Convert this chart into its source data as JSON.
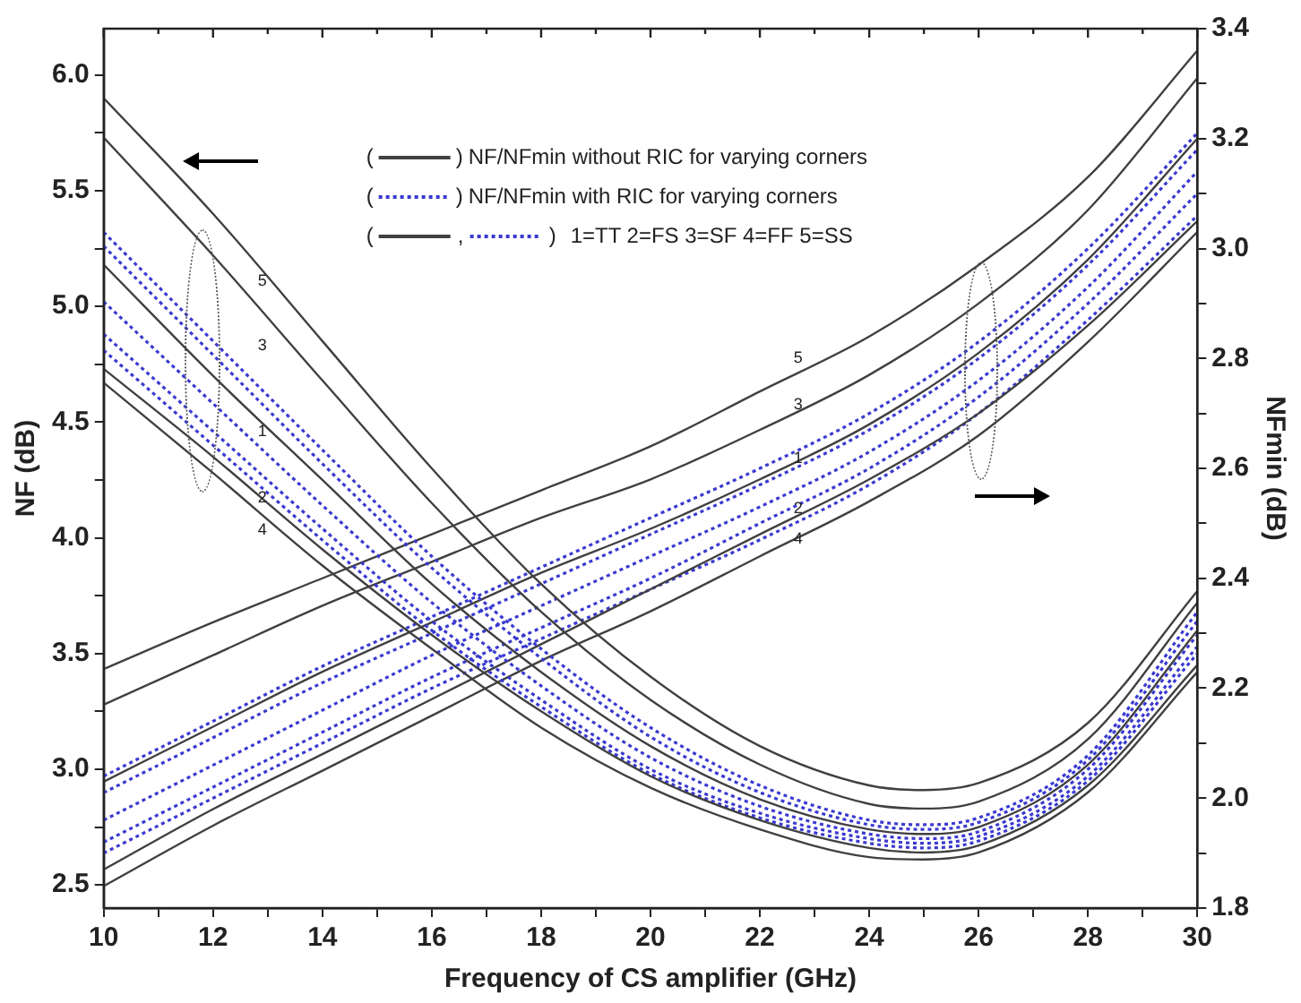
{
  "chart_data": {
    "type": "line",
    "xlabel": "Frequency of CS amplifier (GHz)",
    "ylabel": "NF (dB)",
    "y2label": "NFmin (dB)",
    "xlim": [
      10,
      30
    ],
    "xticks": [
      10,
      {
        "value": 11,
        "label": null
      },
      12,
      {
        "value": 13,
        "label": null
      },
      14,
      {
        "value": 15,
        "label": null
      },
      16,
      {
        "value": 17,
        "label": null
      },
      18,
      {
        "value": 19,
        "label": null
      },
      20,
      {
        "value": 21,
        "label": null
      },
      22,
      {
        "value": 23,
        "label": null
      },
      24,
      {
        "value": 25,
        "label": null
      },
      26,
      {
        "value": 27,
        "label": null
      },
      28,
      {
        "value": 29,
        "label": null
      },
      30
    ],
    "ylim": [
      2.4,
      6.2
    ],
    "yticks": [
      {
        "value": 2.5,
        "label": "2.5"
      },
      {
        "value": 2.75,
        "label": null
      },
      {
        "value": 3,
        "label": "3.0"
      },
      {
        "value": 3.25,
        "label": null
      },
      {
        "value": 3.5,
        "label": "3.5"
      },
      {
        "value": 3.75,
        "label": null
      },
      {
        "value": 4,
        "label": "4.0"
      },
      {
        "value": 4.25,
        "label": null
      },
      {
        "value": 4.5,
        "label": "4.5"
      },
      {
        "value": 4.75,
        "label": null
      },
      {
        "value": 5,
        "label": "5.0"
      },
      {
        "value": 5.25,
        "label": null
      },
      {
        "value": 5.5,
        "label": "5.5"
      },
      {
        "value": 5.75,
        "label": null
      },
      {
        "value": 6,
        "label": "6.0"
      }
    ],
    "y2lim": [
      1.8,
      3.4
    ],
    "y2ticks": [
      {
        "value": 1.8,
        "label": "1.8"
      },
      {
        "value": 1.9,
        "label": null
      },
      {
        "value": 2,
        "label": "2.0"
      },
      {
        "value": 2.1,
        "label": null
      },
      {
        "value": 2.2,
        "label": "2.2"
      },
      {
        "value": 2.3,
        "label": null
      },
      {
        "value": 2.4,
        "label": "2.4"
      },
      {
        "value": 2.5,
        "label": null
      },
      {
        "value": 2.6,
        "label": "2.6"
      },
      {
        "value": 2.7,
        "label": null
      },
      {
        "value": 2.8,
        "label": "2.8"
      },
      {
        "value": 2.9,
        "label": null
      },
      {
        "value": 3,
        "label": "3.0"
      },
      {
        "value": 3.1,
        "label": null
      },
      {
        "value": 3.2,
        "label": "3.2"
      },
      {
        "value": 3.3,
        "label": null
      },
      {
        "value": 3.4,
        "label": "3.4"
      }
    ],
    "grid": false,
    "legend": "top",
    "marker": "none",
    "series": [
      {
        "name": "NF/NFmin without RIC for varying corners",
        "color": "#404040",
        "line_style": "solid",
        "x": [
          10,
          12,
          14,
          16,
          18,
          20,
          22,
          24,
          25,
          26,
          28,
          30
        ],
        "values": [
          5.9,
          5.4,
          4.85,
          4.3,
          3.8,
          3.4,
          3.1,
          2.93,
          2.91,
          2.94,
          3.2,
          3.77
        ]
      },
      {
        "color": "#404040",
        "line_style": "solid",
        "x": [
          10,
          12,
          14,
          16,
          18,
          20,
          22,
          24,
          25,
          26,
          28,
          30
        ],
        "values": [
          5.73,
          5.22,
          4.68,
          4.15,
          3.68,
          3.3,
          3.02,
          2.85,
          2.83,
          2.86,
          3.13,
          3.72
        ]
      },
      {
        "color": "#404040",
        "line_style": "solid",
        "x": [
          10,
          12,
          14,
          16,
          18,
          20,
          22,
          24,
          25,
          26,
          28,
          30
        ],
        "values": [
          5.18,
          4.7,
          4.25,
          3.8,
          3.42,
          3.1,
          2.87,
          2.74,
          2.72,
          2.75,
          3.02,
          3.6
        ]
      },
      {
        "color": "#404040",
        "line_style": "solid",
        "x": [
          10,
          12,
          14,
          16,
          18,
          20,
          22,
          24,
          25,
          26,
          28,
          30
        ],
        "values": [
          4.73,
          4.35,
          3.95,
          3.58,
          3.25,
          2.97,
          2.78,
          2.66,
          2.64,
          2.67,
          2.93,
          3.45
        ]
      },
      {
        "color": "#404040",
        "line_style": "solid",
        "x": [
          10,
          12,
          14,
          16,
          18,
          20,
          22,
          24,
          25,
          26,
          28,
          30
        ],
        "values": [
          4.67,
          4.28,
          3.88,
          3.52,
          3.18,
          2.92,
          2.74,
          2.62,
          2.61,
          2.64,
          2.9,
          3.42
        ]
      },
      {
        "name": "NF/NFmin with RIC for varying corners",
        "color": "#3a3ad0",
        "line_style": "dotted",
        "x": [
          10,
          12,
          14,
          16,
          18,
          20,
          22,
          24,
          25,
          26,
          28,
          30
        ],
        "values": [
          5.32,
          4.85,
          4.38,
          3.92,
          3.52,
          3.18,
          2.93,
          2.78,
          2.76,
          2.79,
          3.06,
          3.68
        ]
      },
      {
        "color": "#3a3ad0",
        "line_style": "dotted",
        "x": [
          10,
          12,
          14,
          16,
          18,
          20,
          22,
          24,
          25,
          26,
          28,
          30
        ],
        "values": [
          5.26,
          4.79,
          4.32,
          3.87,
          3.48,
          3.14,
          2.9,
          2.76,
          2.74,
          2.77,
          3.04,
          3.64
        ]
      },
      {
        "color": "#3a3ad0",
        "line_style": "dotted",
        "x": [
          10,
          12,
          14,
          16,
          18,
          20,
          22,
          24,
          25,
          26,
          28,
          30
        ],
        "values": [
          5.02,
          4.58,
          4.14,
          3.72,
          3.36,
          3.05,
          2.84,
          2.72,
          2.7,
          2.73,
          3.0,
          3.58
        ]
      },
      {
        "color": "#3a3ad0",
        "line_style": "dotted",
        "x": [
          10,
          12,
          14,
          16,
          18,
          20,
          22,
          24,
          25,
          26,
          28,
          30
        ],
        "values": [
          4.88,
          4.46,
          4.04,
          3.64,
          3.3,
          3.0,
          2.81,
          2.7,
          2.68,
          2.71,
          2.97,
          3.53
        ]
      },
      {
        "color": "#3a3ad0",
        "line_style": "dotted",
        "x": [
          10,
          12,
          14,
          16,
          18,
          20,
          22,
          24,
          25,
          26,
          28,
          30
        ],
        "values": [
          4.81,
          4.4,
          3.99,
          3.6,
          3.27,
          2.98,
          2.79,
          2.68,
          2.66,
          2.69,
          2.95,
          3.5
        ]
      },
      {
        "color": "#404040",
        "line_style": "solid",
        "axis": "y2",
        "x": [
          10,
          12,
          14,
          16,
          18,
          20,
          22,
          24,
          26,
          28,
          30
        ],
        "values": [
          2.235,
          2.32,
          2.4,
          2.48,
          2.56,
          2.64,
          2.74,
          2.84,
          2.97,
          3.13,
          3.36
        ]
      },
      {
        "color": "#404040",
        "line_style": "solid",
        "axis": "y2",
        "x": [
          10,
          12,
          14,
          16,
          18,
          20,
          22,
          24,
          26,
          28,
          30
        ],
        "values": [
          2.17,
          2.26,
          2.35,
          2.43,
          2.51,
          2.58,
          2.67,
          2.77,
          2.9,
          3.07,
          3.31
        ]
      },
      {
        "color": "#404040",
        "line_style": "solid",
        "axis": "y2",
        "x": [
          10,
          12,
          14,
          16,
          18,
          20,
          22,
          24,
          26,
          28,
          30
        ],
        "values": [
          2.03,
          2.13,
          2.23,
          2.32,
          2.41,
          2.49,
          2.58,
          2.68,
          2.81,
          2.98,
          3.2
        ]
      },
      {
        "color": "#404040",
        "line_style": "solid",
        "axis": "y2",
        "x": [
          10,
          12,
          14,
          16,
          18,
          20,
          22,
          24,
          26,
          28,
          30
        ],
        "values": [
          1.87,
          1.98,
          2.08,
          2.18,
          2.28,
          2.38,
          2.48,
          2.58,
          2.7,
          2.86,
          3.05
        ]
      },
      {
        "color": "#404040",
        "line_style": "solid",
        "axis": "y2",
        "x": [
          10,
          12,
          14,
          16,
          18,
          20,
          22,
          24,
          26,
          28,
          30
        ],
        "values": [
          1.84,
          1.95,
          2.05,
          2.15,
          2.25,
          2.34,
          2.44,
          2.54,
          2.66,
          2.83,
          3.03
        ]
      },
      {
        "color": "#3a3ad0",
        "line_style": "dotted",
        "axis": "y2",
        "x": [
          10,
          12,
          14,
          16,
          18,
          20,
          22,
          24,
          26,
          28,
          30
        ],
        "values": [
          2.04,
          2.14,
          2.24,
          2.33,
          2.42,
          2.51,
          2.6,
          2.7,
          2.83,
          3.0,
          3.21
        ]
      },
      {
        "color": "#3a3ad0",
        "line_style": "dotted",
        "axis": "y2",
        "x": [
          10,
          12,
          14,
          16,
          18,
          20,
          22,
          24,
          26,
          28,
          30
        ],
        "values": [
          2.01,
          2.11,
          2.21,
          2.3,
          2.39,
          2.48,
          2.57,
          2.67,
          2.8,
          2.97,
          3.18
        ]
      },
      {
        "color": "#3a3ad0",
        "line_style": "dotted",
        "axis": "y2",
        "x": [
          10,
          12,
          14,
          16,
          18,
          20,
          22,
          24,
          26,
          28,
          30
        ],
        "values": [
          1.96,
          2.06,
          2.16,
          2.26,
          2.35,
          2.44,
          2.53,
          2.63,
          2.76,
          2.93,
          3.14
        ]
      },
      {
        "color": "#3a3ad0",
        "line_style": "dotted",
        "axis": "y2",
        "x": [
          10,
          12,
          14,
          16,
          18,
          20,
          22,
          24,
          26,
          28,
          30
        ],
        "values": [
          1.92,
          2.02,
          2.12,
          2.22,
          2.31,
          2.4,
          2.5,
          2.6,
          2.73,
          2.9,
          3.1
        ]
      },
      {
        "color": "#3a3ad0",
        "line_style": "dotted",
        "axis": "y2",
        "x": [
          10,
          12,
          14,
          16,
          18,
          20,
          22,
          24,
          26,
          28,
          30
        ],
        "values": [
          1.9,
          2.0,
          2.1,
          2.2,
          2.29,
          2.38,
          2.47,
          2.57,
          2.7,
          2.87,
          3.06
        ]
      }
    ],
    "annotations": [
      "(",
      ")",
      "(",
      ")",
      "(",
      ",",
      ")",
      "1=TT 2=FS 3=SF 4=FF 5=SS",
      "5",
      "3",
      "1",
      "2",
      "4",
      "5",
      "3",
      "1",
      "2",
      "4"
    ]
  }
}
